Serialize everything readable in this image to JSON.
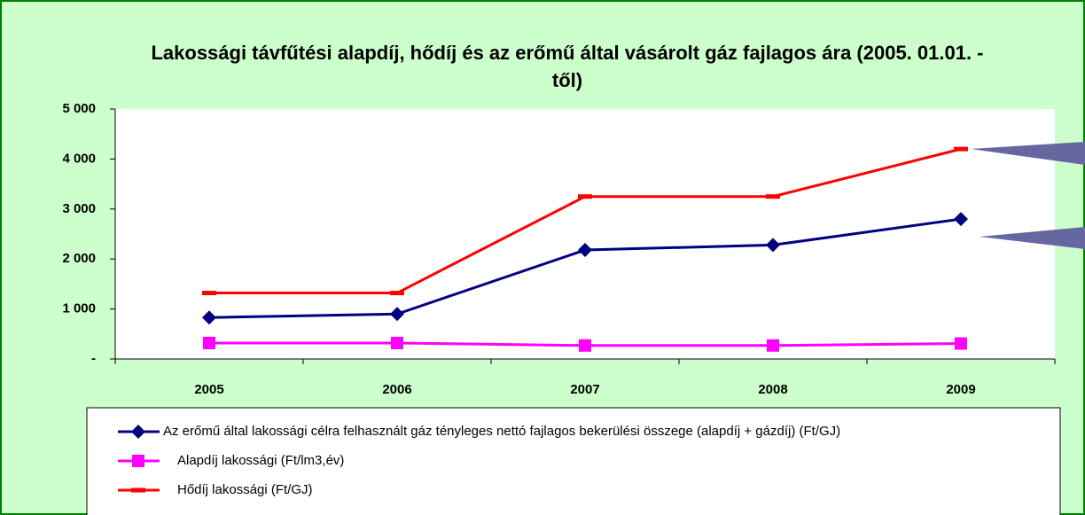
{
  "chart_data": {
    "type": "line",
    "title": "Lakossági távfűtési alapdíj, hődíj és az erőmű által vásárolt gáz fajlagos ára (2005. 01.01. -től)",
    "categories": [
      "2005",
      "2006",
      "2007",
      "2008",
      "2009"
    ],
    "series": [
      {
        "name": "Az erőmű által lakossági célra felhasznált gáz tényleges nettó  fajlagos bekerülési összege (alapdíj + gázdíj) (Ft/GJ)",
        "color": "#000080",
        "marker": "diamond",
        "values": [
          830,
          900,
          2180,
          2280,
          2800
        ]
      },
      {
        "name": "Alapdíj lakossági (Ft/lm3,év)",
        "color": "#ff00ff",
        "marker": "square",
        "values": [
          320,
          320,
          270,
          270,
          310
        ]
      },
      {
        "name": "Hődíj lakossági (Ft/GJ)",
        "color": "#ff0000",
        "marker": "dash",
        "values": [
          1320,
          1320,
          3250,
          3250,
          4200
        ]
      }
    ],
    "ylim": [
      0,
      5000
    ],
    "yticks": [
      {
        "value": 0,
        "label": "-"
      },
      {
        "value": 1000,
        "label": "1 000"
      },
      {
        "value": 2000,
        "label": "2 000"
      },
      {
        "value": 3000,
        "label": "3 000"
      },
      {
        "value": 4000,
        "label": "4 000"
      },
      {
        "value": 5000,
        "label": "5 000"
      }
    ]
  }
}
